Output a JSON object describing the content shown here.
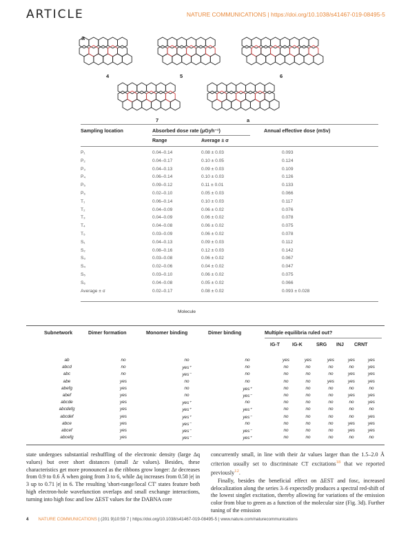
{
  "header": {
    "article": "ARTICLE",
    "journal": "NATURE COMMUNICATIONS | https://doi.org/10.1038/s41467-019-08495-5"
  },
  "figure": {
    "panel": "a",
    "labels": [
      "4",
      "5",
      "6",
      "7",
      "a"
    ]
  },
  "dose_table": {
    "col_location": "Sampling location",
    "col_absorbed": "Absorbed dose rate (μGyh⁻¹)",
    "col_annual": "Annual effective dose (mSv)",
    "sub_range": "Range",
    "sub_average": "Average ± σ",
    "rows": [
      {
        "loc": "P₁",
        "range": "0.04–0.14",
        "avg": "0.08 ± 0.03",
        "annual": "0.093"
      },
      {
        "loc": "P₂",
        "range": "0.04–0.17",
        "avg": "0.10 ± 0.05",
        "annual": "0.124"
      },
      {
        "loc": "P₃",
        "range": "0.04–0.13",
        "avg": "0.09 ± 0.03",
        "annual": "0.109"
      },
      {
        "loc": "P₄",
        "range": "0.06–0.14",
        "avg": "0.10 ± 0.03",
        "annual": "0.126"
      },
      {
        "loc": "P₅",
        "range": "0.09–0.12",
        "avg": "0.11 ± 0.01",
        "annual": "0.133"
      },
      {
        "loc": "P₆",
        "range": "0.02–0.10",
        "avg": "0.05 ± 0.03",
        "annual": "0.066"
      },
      {
        "loc": "T₁",
        "range": "0.06–0.14",
        "avg": "0.10 ± 0.03",
        "annual": "0.117"
      },
      {
        "loc": "T₂",
        "range": "0.04–0.09",
        "avg": "0.06 ± 0.02",
        "annual": "0.076"
      },
      {
        "loc": "T₃",
        "range": "0.04–0.09",
        "avg": "0.06 ± 0.02",
        "annual": "0.078"
      },
      {
        "loc": "T₄",
        "range": "0.04–0.08",
        "avg": "0.06 ± 0.02",
        "annual": "0.075"
      },
      {
        "loc": "T₅",
        "range": "0.03–0.09",
        "avg": "0.06 ± 0.02",
        "annual": "0.078"
      },
      {
        "loc": "S₁",
        "range": "0.04–0.13",
        "avg": "0.09 ± 0.03",
        "annual": "0.112"
      },
      {
        "loc": "S₂",
        "range": "0.08–0.16",
        "avg": "0.12 ± 0.03",
        "annual": "0.142"
      },
      {
        "loc": "S₃",
        "range": "0.03–0.08",
        "avg": "0.06 ± 0.02",
        "annual": "0.067"
      },
      {
        "loc": "S₄",
        "range": "0.02–0.06",
        "avg": "0.04 ± 0.02",
        "annual": "0.047"
      },
      {
        "loc": "S₅",
        "range": "0.03–0.10",
        "avg": "0.06 ± 0.02",
        "annual": "0.075"
      },
      {
        "loc": "S₆",
        "range": "0.04–0.08",
        "avg": "0.05 ± 0.02",
        "annual": "0.066"
      },
      {
        "loc": "Average ± σ",
        "range": "0.02–0.17",
        "avg": "0.08 ± 0.02",
        "annual": "0.093 ± 0.028"
      }
    ]
  },
  "molecule_label": "Molecule",
  "eq_table": {
    "headers": {
      "subnetwork": "Subnetwork",
      "dimer_formation": "Dimer formation",
      "monomer_binding": "Monomer binding",
      "dimer_binding": "Dimer binding",
      "multiple": "Multiple equilibria ruled out?"
    },
    "sub": [
      "IG-T",
      "IG-K",
      "SRG",
      "INJ",
      "CRNT"
    ],
    "rows": [
      {
        "sn": "ab",
        "df": "no",
        "mb": "no",
        "db": "no",
        "v": [
          "yes",
          "yes",
          "yes",
          "yes",
          "yes"
        ]
      },
      {
        "sn": "abcd",
        "df": "no",
        "mb": "yes⁺",
        "db": "no",
        "v": [
          "no",
          "no",
          "no",
          "no",
          "yes"
        ]
      },
      {
        "sn": "abc",
        "df": "no",
        "mb": "yes⁻",
        "db": "no",
        "v": [
          "no",
          "no",
          "no",
          "yes",
          "yes"
        ]
      },
      {
        "sn": "abe",
        "df": "yes",
        "mb": "no",
        "db": "no",
        "v": [
          "no",
          "no",
          "yes",
          "yes",
          "yes"
        ]
      },
      {
        "sn": "abefg",
        "df": "yes",
        "mb": "no",
        "db": "yes⁺",
        "v": [
          "no",
          "no",
          "no",
          "no",
          "no"
        ]
      },
      {
        "sn": "abef",
        "df": "yes",
        "mb": "no",
        "db": "yes⁻",
        "v": [
          "no",
          "no",
          "no",
          "yes",
          "yes"
        ]
      },
      {
        "sn": "abcde",
        "df": "yes",
        "mb": "yes⁺",
        "db": "no",
        "v": [
          "no",
          "no",
          "no",
          "no",
          "yes"
        ]
      },
      {
        "sn": "abcdefg",
        "df": "yes",
        "mb": "yes⁺",
        "db": "yes⁺",
        "v": [
          "no",
          "no",
          "no",
          "no",
          "no"
        ]
      },
      {
        "sn": "abcdef",
        "df": "yes",
        "mb": "yes⁺",
        "db": "yes⁻",
        "v": [
          "no",
          "no",
          "no",
          "no",
          "yes"
        ]
      },
      {
        "sn": "abce",
        "df": "yes",
        "mb": "yes⁻",
        "db": "no",
        "v": [
          "no",
          "no",
          "no",
          "yes",
          "yes"
        ]
      },
      {
        "sn": "abcef",
        "df": "yes",
        "mb": "yes⁻",
        "db": "yes⁻",
        "v": [
          "no",
          "no",
          "no",
          "yes",
          "yes"
        ]
      },
      {
        "sn": "abcefg",
        "df": "yes",
        "mb": "yes⁻",
        "db": "yes⁺",
        "v": [
          "no",
          "no",
          "no",
          "no",
          "no"
        ]
      }
    ]
  },
  "body": {
    "left": "state undergoes substantial reshuffling of the electronic density (large Δq values) but over short distances (small Δr values). Besides, these characteristics get more pronounced as the ribbons grow longer: Δr decreases from 0.9 to 0.6 Å when going from 3 to 6, while Δq increases from 0.58 |e| in 3 up to 0.71 |e| in 6. The resulting 'short-range/local CT' states feature both high electron-hole wavefunction overlaps and small exchange interactions, turning into high fosc and low ΔEST values for the DABNA core",
    "right_1": "concurrently small, in line with their Δr values larger than the 1.5–2.0 Å criterion usually set to discriminate CT excitations",
    "right_ref1": "18",
    "right_2": " that we reported previously",
    "right_ref2": "12",
    "right_3": ".",
    "right_para2": "Finally, besides the beneficial effect on ΔEST and fosc, increased delocalization along the series 3–6 expectedly produces a spectral red-shift of the lowest singlet excitation, thereby allowing for variations of the emission color from blue to green as a function of the molecular size (Fig. 3d). Further tuning of the emission"
  },
  "footer": {
    "page": "4",
    "journal": "NATURE COMMUNICATIONS",
    "middle": "| (201    9)10:59   7 | https://doi.org/10.1038/s41467-019-08495-5 | www.nature.com/naturecommunications"
  }
}
